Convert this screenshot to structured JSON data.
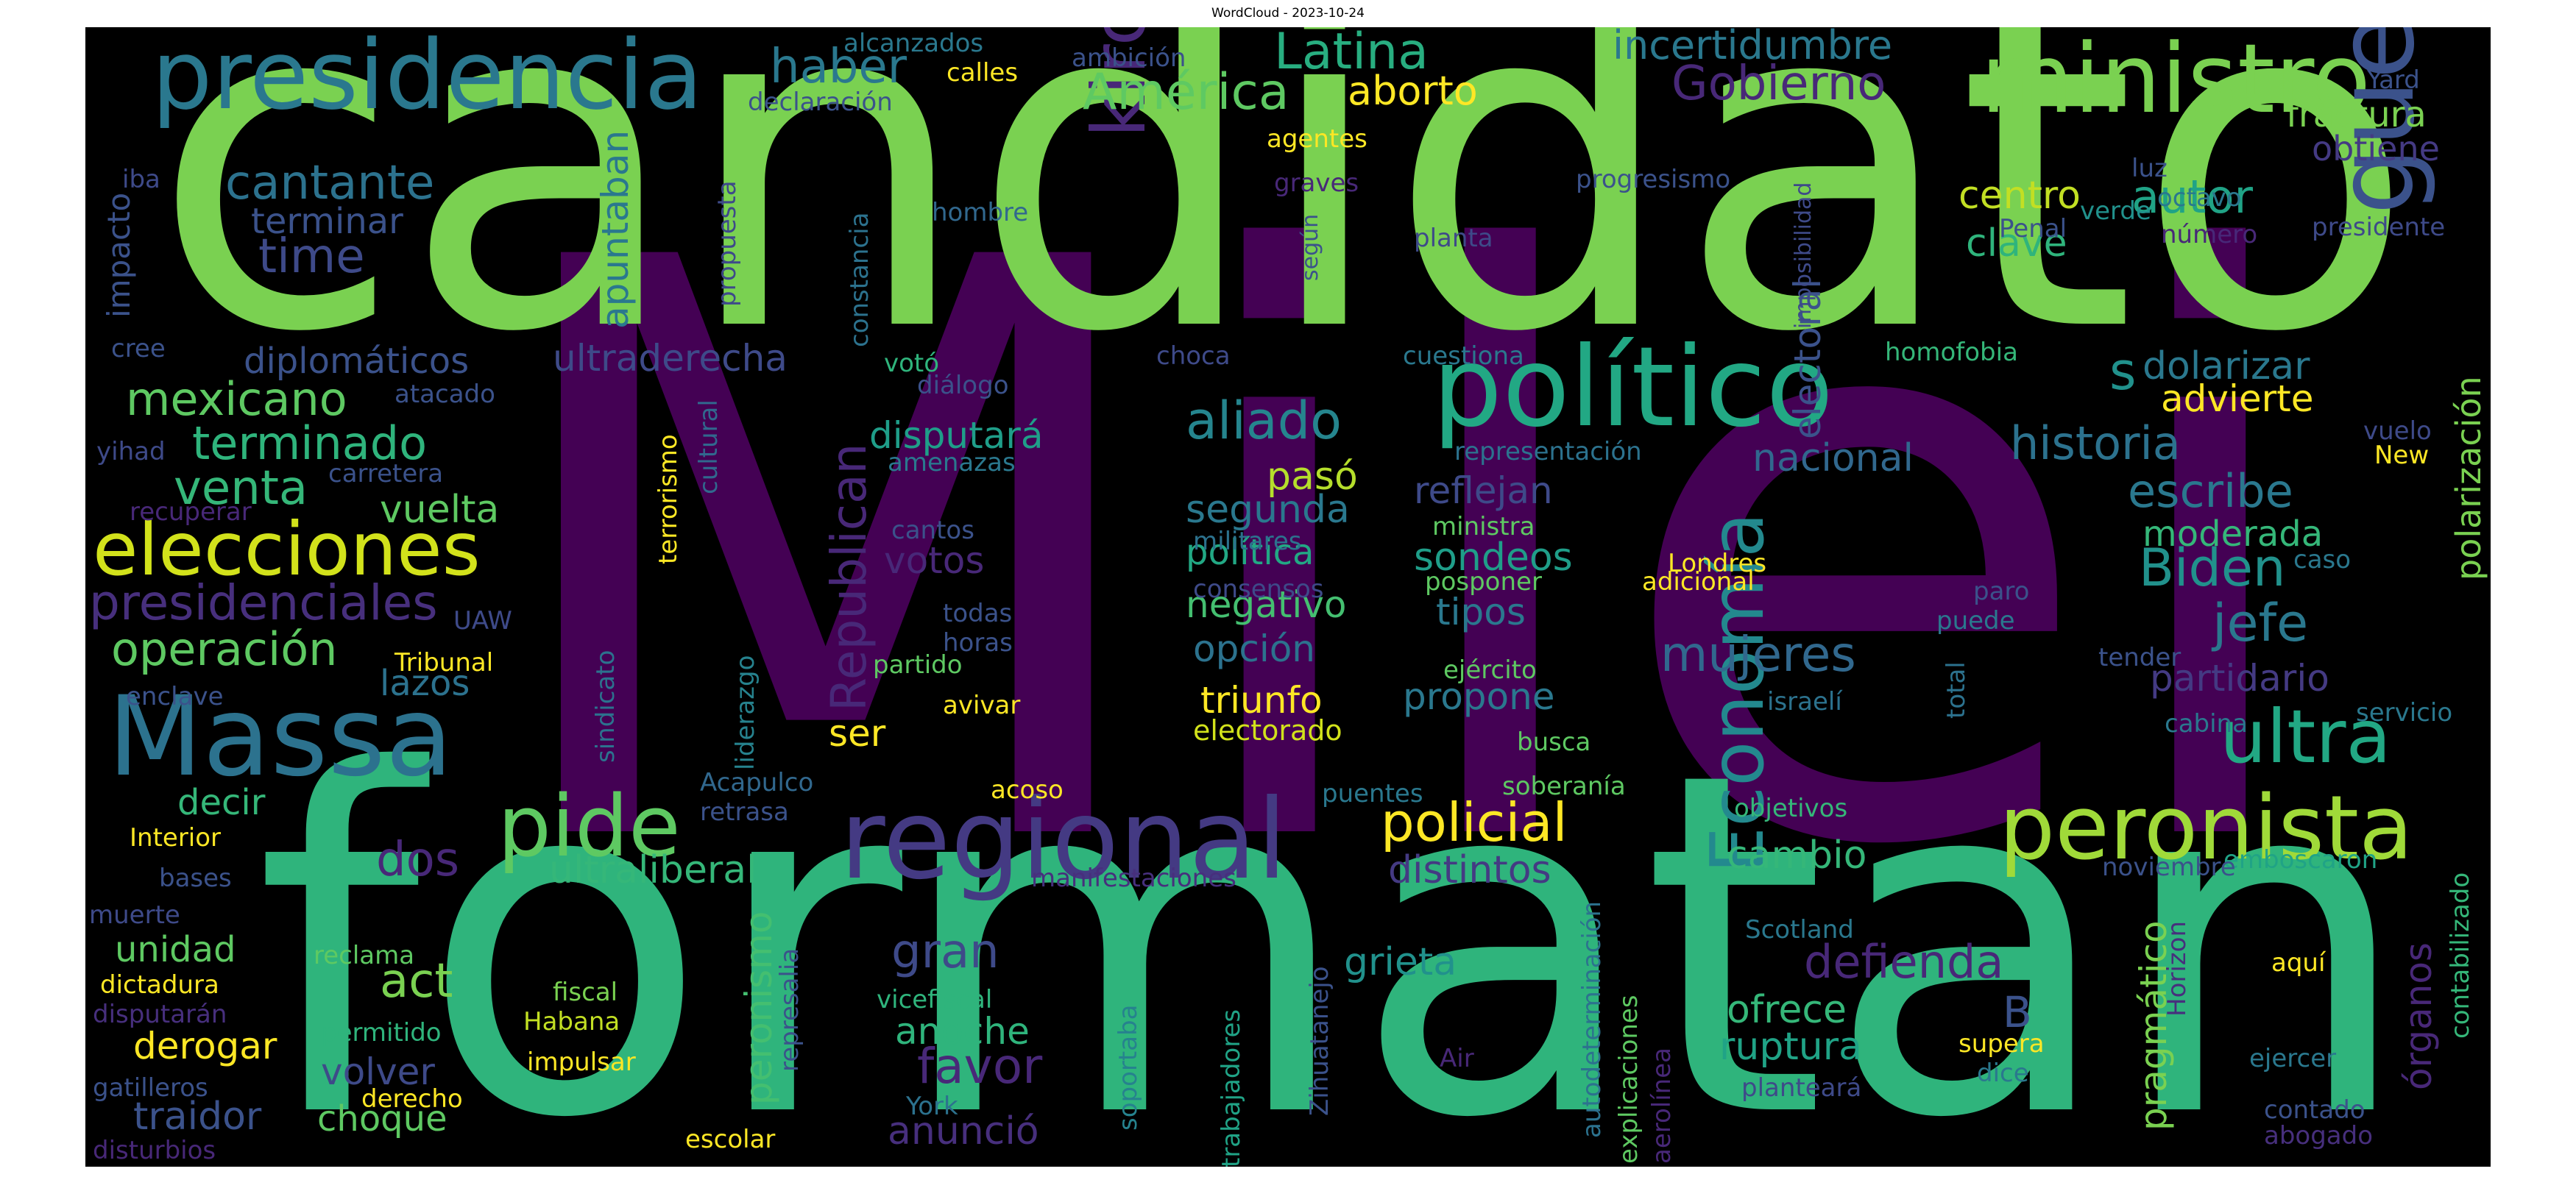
{
  "title": "WordCloud - 2023-10-24",
  "colors": {
    "background": "#000000",
    "palette": [
      "#440154",
      "#3b528b",
      "#21918c",
      "#5ec962",
      "#fde725"
    ]
  },
  "words": [
    {
      "text": "Milei",
      "color": "#440154"
    },
    {
      "text": "candidato",
      "color": "#7ad151"
    },
    {
      "text": "formatan",
      "color": "#2fb47c"
    },
    {
      "text": "presidencia",
      "color": "#2a788e"
    },
    {
      "text": "ministro",
      "color": "#7ad151"
    },
    {
      "text": "político",
      "color": "#22a884"
    },
    {
      "text": "guerra",
      "color": "#3b528b"
    },
    {
      "text": "Massa",
      "color": "#2c728e"
    },
    {
      "text": "regional",
      "color": "#443a83"
    },
    {
      "text": "peronista",
      "color": "#a0da39"
    },
    {
      "text": "pide",
      "color": "#5ec962"
    },
    {
      "text": "elecciones",
      "color": "#d2e21b"
    },
    {
      "text": "kirchnerismo",
      "color": "#482878"
    },
    {
      "text": "Economía",
      "color": "#23898e"
    },
    {
      "text": "ultra",
      "color": "#22a884"
    },
    {
      "text": "cantante",
      "color": "#2c728e"
    },
    {
      "text": "Gobierno",
      "color": "#482878"
    },
    {
      "text": "Latina",
      "color": "#28ae80"
    },
    {
      "text": "América",
      "color": "#5ec962"
    },
    {
      "text": "haber",
      "color": "#2a788e"
    },
    {
      "text": "aborto",
      "color": "#fde725"
    },
    {
      "text": "incertidumbre",
      "color": "#2a788e"
    },
    {
      "text": "fractura",
      "color": "#7ad151"
    },
    {
      "text": "obtiene",
      "color": "#443a83"
    },
    {
      "text": "autor",
      "color": "#20a386"
    },
    {
      "text": "centro",
      "color": "#c2df23"
    },
    {
      "text": "clave",
      "color": "#2fb47c"
    },
    {
      "text": "terminar",
      "color": "#3b528b"
    },
    {
      "text": "time",
      "color": "#3e4a89"
    },
    {
      "text": "mexicano",
      "color": "#5ec962"
    },
    {
      "text": "terminado",
      "color": "#2fb47c"
    },
    {
      "text": "venta",
      "color": "#35b779"
    },
    {
      "text": "vuelta",
      "color": "#5ec962"
    },
    {
      "text": "presidenciales",
      "color": "#472f7d"
    },
    {
      "text": "operación",
      "color": "#5ec962"
    },
    {
      "text": "lazos",
      "color": "#2c728e"
    },
    {
      "text": "diplomáticos",
      "color": "#3b528b"
    },
    {
      "text": "ultraderecha",
      "color": "#3e4a89"
    },
    {
      "text": "apuntaban",
      "color": "#2a788e"
    },
    {
      "text": "Republican",
      "color": "#482878"
    },
    {
      "text": "disputará",
      "color": "#1f9e89"
    },
    {
      "text": "aliado",
      "color": "#25858e"
    },
    {
      "text": "pasó",
      "color": "#b5de2b"
    },
    {
      "text": "segunda",
      "color": "#2a788e"
    },
    {
      "text": "política",
      "color": "#22a884"
    },
    {
      "text": "votos",
      "color": "#482878"
    },
    {
      "text": "negativo",
      "color": "#44bf70"
    },
    {
      "text": "opción",
      "color": "#2c728e"
    },
    {
      "text": "triunfo",
      "color": "#fde725"
    },
    {
      "text": "electorado",
      "color": "#d2e21b"
    },
    {
      "text": "electoral",
      "color": "#3b528b"
    },
    {
      "text": "nacional",
      "color": "#31688e"
    },
    {
      "text": "historia",
      "color": "#2c728e"
    },
    {
      "text": "reflejan",
      "color": "#3e4a89"
    },
    {
      "text": "sondeos",
      "color": "#1f9e89"
    },
    {
      "text": "tipos",
      "color": "#2a788e"
    },
    {
      "text": "mujeres",
      "color": "#31688e"
    },
    {
      "text": "propone",
      "color": "#2a788e"
    },
    {
      "text": "escribe",
      "color": "#2a788e"
    },
    {
      "text": "moderada",
      "color": "#35b779"
    },
    {
      "text": "Biden",
      "color": "#21918c"
    },
    {
      "text": "jefe",
      "color": "#2a788e"
    },
    {
      "text": "partidario",
      "color": "#443a83"
    },
    {
      "text": "dolarizar",
      "color": "#2a788e"
    },
    {
      "text": "advierte",
      "color": "#fde725"
    },
    {
      "text": "polarización",
      "color": "#7ad151"
    },
    {
      "text": "policial",
      "color": "#fde725"
    },
    {
      "text": "cambio",
      "color": "#35b779"
    },
    {
      "text": "defienda",
      "color": "#482878"
    },
    {
      "text": "ofrece",
      "color": "#35b779"
    },
    {
      "text": "ruptura",
      "color": "#20a386"
    },
    {
      "text": "pragmático",
      "color": "#7ad151"
    },
    {
      "text": "órganos",
      "color": "#482878"
    },
    {
      "text": "distintos",
      "color": "#443a83"
    },
    {
      "text": "grieta",
      "color": "#21918c"
    },
    {
      "text": "ultraliberal",
      "color": "#35b779"
    },
    {
      "text": "dos",
      "color": "#482878"
    },
    {
      "text": "unidad",
      "color": "#5ec962"
    },
    {
      "text": "act",
      "color": "#7ad151"
    },
    {
      "text": "gran",
      "color": "#3e4a89"
    },
    {
      "text": "anoche",
      "color": "#2fb47c"
    },
    {
      "text": "favor",
      "color": "#482878"
    },
    {
      "text": "anunció",
      "color": "#472f7d"
    },
    {
      "text": "peronismo",
      "color": "#44bf70"
    },
    {
      "text": "derogar",
      "color": "#fde725"
    },
    {
      "text": "traidor",
      "color": "#3b528b"
    },
    {
      "text": "choque",
      "color": "#5ec962"
    },
    {
      "text": "volver",
      "color": "#3e4a89"
    },
    {
      "text": "decir",
      "color": "#35b779"
    },
    {
      "text": "ser",
      "color": "#fde725"
    },
    {
      "text": "impacto",
      "color": "#3b528b"
    },
    {
      "text": "constancia",
      "color": "#2c728e"
    },
    {
      "text": "propuesta",
      "color": "#3e4a89"
    },
    {
      "text": "cultural",
      "color": "#31688e"
    },
    {
      "text": "terrorismo",
      "color": "#fde725"
    },
    {
      "text": "liderazgo",
      "color": "#26828e"
    },
    {
      "text": "sindicato",
      "color": "#2c728e"
    },
    {
      "text": "represalia",
      "color": "#3b528b"
    },
    {
      "text": "soportaba",
      "color": "#26828e"
    },
    {
      "text": "trabajadores",
      "color": "#20a386"
    },
    {
      "text": "Zihuatanejo",
      "color": "#3b528b"
    },
    {
      "text": "autodeterminación",
      "color": "#2c728e"
    },
    {
      "text": "explicaciones",
      "color": "#5ec962"
    },
    {
      "text": "aerolínea",
      "color": "#482878"
    },
    {
      "text": "imposibilidad",
      "color": "#3e4a89"
    },
    {
      "text": "total",
      "color": "#2c728e"
    },
    {
      "text": "Horizon",
      "color": "#472f7d"
    },
    {
      "text": "contabilizado",
      "color": "#35b779"
    },
    {
      "text": "según",
      "color": "#3b528b"
    },
    {
      "text": "alcanzados",
      "color": "#2a788e"
    },
    {
      "text": "ambición",
      "color": "#3b528b"
    },
    {
      "text": "calles",
      "color": "#fde725"
    },
    {
      "text": "declaración",
      "color": "#3b528b"
    },
    {
      "text": "agentes",
      "color": "#fde725"
    },
    {
      "text": "graves",
      "color": "#482878"
    },
    {
      "text": "hombre",
      "color": "#31688e"
    },
    {
      "text": "planta",
      "color": "#3e4a89"
    },
    {
      "text": "progresismo",
      "color": "#3b528b"
    },
    {
      "text": "luz",
      "color": "#3b528b"
    },
    {
      "text": "verde",
      "color": "#21918c"
    },
    {
      "text": "octavo",
      "color": "#2a788e"
    },
    {
      "text": "número",
      "color": "#482878"
    },
    {
      "text": "Penal",
      "color": "#3b528b"
    },
    {
      "text": "presidente",
      "color": "#3e4a89"
    },
    {
      "text": "Yard",
      "color": "#3b528b"
    },
    {
      "text": "iba",
      "color": "#3e4a89"
    },
    {
      "text": "cree",
      "color": "#3b528b"
    },
    {
      "text": "votó",
      "color": "#2fb47c"
    },
    {
      "text": "diálogo",
      "color": "#3b528b"
    },
    {
      "text": "choca",
      "color": "#3e4a89"
    },
    {
      "text": "cuestiona",
      "color": "#2a788e"
    },
    {
      "text": "homofobia",
      "color": "#35b779"
    },
    {
      "text": "s",
      "color": "#21918c"
    },
    {
      "text": "atacado",
      "color": "#3b528b"
    },
    {
      "text": "yihad",
      "color": "#3e4a89"
    },
    {
      "text": "carretera",
      "color": "#3b528b"
    },
    {
      "text": "amenazas",
      "color": "#2a788e"
    },
    {
      "text": "representación",
      "color": "#2c728e"
    },
    {
      "text": "vuelo",
      "color": "#3e4a89"
    },
    {
      "text": "New",
      "color": "#fde725"
    },
    {
      "text": "recuperar",
      "color": "#482878"
    },
    {
      "text": "cantos",
      "color": "#3b528b"
    },
    {
      "text": "militares",
      "color": "#2c728e"
    },
    {
      "text": "ministra",
      "color": "#5ec962"
    },
    {
      "text": "consensos",
      "color": "#3e4a89"
    },
    {
      "text": "posponer",
      "color": "#5ec962"
    },
    {
      "text": "Londres",
      "color": "#fde725"
    },
    {
      "text": "adicional",
      "color": "#fde725"
    },
    {
      "text": "caso",
      "color": "#2a788e"
    },
    {
      "text": "paro",
      "color": "#3b528b"
    },
    {
      "text": "puede",
      "color": "#2a788e"
    },
    {
      "text": "UAW",
      "color": "#3e4a89"
    },
    {
      "text": "todas",
      "color": "#3b528b"
    },
    {
      "text": "horas",
      "color": "#3b528b"
    },
    {
      "text": "Tribunal",
      "color": "#fde725"
    },
    {
      "text": "partido",
      "color": "#5ec962"
    },
    {
      "text": "ejército",
      "color": "#5ec962"
    },
    {
      "text": "tender",
      "color": "#3b528b"
    },
    {
      "text": "enclave",
      "color": "#3b528b"
    },
    {
      "text": "avivar",
      "color": "#fde725"
    },
    {
      "text": "busca",
      "color": "#5ec962"
    },
    {
      "text": "israelí",
      "color": "#2c728e"
    },
    {
      "text": "cabina",
      "color": "#2a788e"
    },
    {
      "text": "servicio",
      "color": "#2a788e"
    },
    {
      "text": "Acapulco",
      "color": "#31688e"
    },
    {
      "text": "retrasa",
      "color": "#3b528b"
    },
    {
      "text": "acoso",
      "color": "#fde725"
    },
    {
      "text": "puentes",
      "color": "#2a788e"
    },
    {
      "text": "soberanía",
      "color": "#5ec962"
    },
    {
      "text": "objetivos",
      "color": "#35b779"
    },
    {
      "text": "emboscaron",
      "color": "#20a386"
    },
    {
      "text": "noviembre",
      "color": "#3b528b"
    },
    {
      "text": "Interior",
      "color": "#fde725"
    },
    {
      "text": "bases",
      "color": "#3b528b"
    },
    {
      "text": "manifestaciones",
      "color": "#472f7d"
    },
    {
      "text": "muerte",
      "color": "#3e4a89"
    },
    {
      "text": "Scotland",
      "color": "#2a788e"
    },
    {
      "text": "B",
      "color": "#3b528b"
    },
    {
      "text": "reclama",
      "color": "#5ec962"
    },
    {
      "text": "dictadura",
      "color": "#fde725"
    },
    {
      "text": "fiscal",
      "color": "#7ad151"
    },
    {
      "text": "Habana",
      "color": "#c2df23"
    },
    {
      "text": "vicefiscal",
      "color": "#2fb47c"
    },
    {
      "text": "aquí",
      "color": "#fde725"
    },
    {
      "text": "disputarán",
      "color": "#472f7d"
    },
    {
      "text": "permitido",
      "color": "#2fb47c"
    },
    {
      "text": "impulsar",
      "color": "#fde725"
    },
    {
      "text": "supera",
      "color": "#fde725"
    },
    {
      "text": "Air",
      "color": "#482878"
    },
    {
      "text": "ejercer",
      "color": "#2a788e"
    },
    {
      "text": "gatilleros",
      "color": "#3b528b"
    },
    {
      "text": "derecho",
      "color": "#fde725"
    },
    {
      "text": "York",
      "color": "#2c728e"
    },
    {
      "text": "planteará",
      "color": "#3e4a89"
    },
    {
      "text": "dice",
      "color": "#2a788e"
    },
    {
      "text": "contado",
      "color": "#3b528b"
    },
    {
      "text": "escolar",
      "color": "#fde725"
    },
    {
      "text": "abogado",
      "color": "#472f7d"
    },
    {
      "text": "disturbios",
      "color": "#482878"
    }
  ]
}
